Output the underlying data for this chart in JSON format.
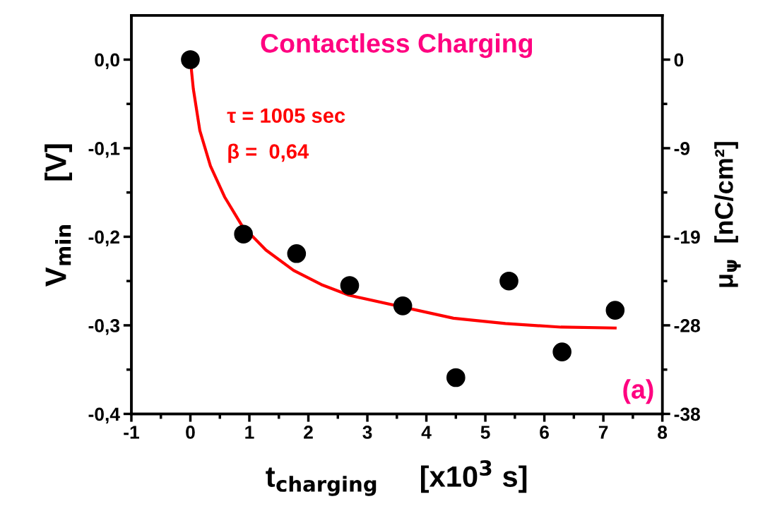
{
  "chart_data": {
    "type": "scatter",
    "title": "Contactless Charging",
    "xlabel": "t$_{charging}$     [x10$^{3}$ s]",
    "ylabel": "V$_{min}$     [V]",
    "y2label": "μ$_{ψ}$  [nC/cm²]",
    "xlim": [
      -1,
      8
    ],
    "xticks": [
      -1,
      0,
      1,
      2,
      3,
      4,
      5,
      6,
      7,
      8
    ],
    "ylim": [
      -0.4,
      0.05
    ],
    "yticks": [
      {
        "value": -0.4,
        "label": "-0,4"
      },
      {
        "value": -0.3,
        "label": "-0,3"
      },
      {
        "value": -0.2,
        "label": "-0,2"
      },
      {
        "value": -0.1,
        "label": "-0,1"
      },
      {
        "value": 0,
        "label": "0,0"
      }
    ],
    "y2lim": [
      -37.8,
      4.725
    ],
    "y2ticks": [
      {
        "value": -37.8,
        "label": "-38"
      },
      {
        "value": -28.35,
        "label": "-28"
      },
      {
        "value": -18.9,
        "label": "-19"
      },
      {
        "value": -9.45,
        "label": "-9"
      },
      {
        "value": 0,
        "label": "0"
      }
    ],
    "grid": false,
    "legend": false,
    "series": [
      {
        "marker": "circle",
        "color": "#000000",
        "x": [
          0,
          0.9,
          1.8,
          2.7,
          3.6,
          4.5,
          5.4,
          6.3,
          7.2
        ],
        "values": [
          0,
          -0.197,
          -0.219,
          -0.255,
          -0.278,
          -0.359,
          -0.25,
          -0.33,
          -0.283
        ]
      },
      {
        "type": "line",
        "color": "#ff0000",
        "x": [
          0,
          0.05,
          0.16,
          0.34,
          0.58,
          0.87,
          1.28,
          1.75,
          2.22,
          2.69,
          4.46,
          5.34,
          6.28,
          7.2
        ],
        "values": [
          0,
          -0.033,
          -0.08,
          -0.12,
          -0.155,
          -0.187,
          -0.215,
          -0.238,
          -0.254,
          -0.266,
          -0.292,
          -0.298,
          -0.302,
          -0.303
        ]
      }
    ],
    "annotations": [
      "τ = 1005 sec",
      "β =  0,64",
      "(a)"
    ]
  }
}
